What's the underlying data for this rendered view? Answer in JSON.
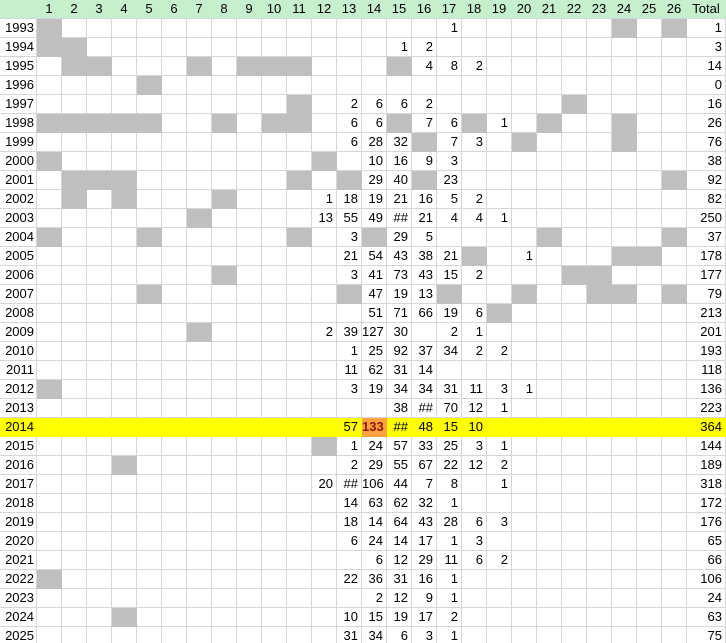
{
  "sheet_title": "Yearly counts by week/period spreadsheet",
  "colors": {
    "header_bg": "#C6EFCE",
    "grid_line": "#D6D6D6",
    "gray_fill": "#BFBFBF",
    "highlight_row": "#FFFF00",
    "accent_cell_bg": "#FFA33F",
    "accent_cell_text": "#8E1600",
    "text": "#000000"
  },
  "header": {
    "corner_label": "",
    "columns": [
      "1",
      "2",
      "3",
      "4",
      "5",
      "6",
      "7",
      "8",
      "9",
      "10",
      "11",
      "12",
      "13",
      "14",
      "15",
      "16",
      "17",
      "18",
      "19",
      "20",
      "21",
      "22",
      "23",
      "24",
      "25",
      "26"
    ],
    "total_label": "Total"
  },
  "rows": [
    {
      "year": "1993",
      "gray": [
        1,
        24,
        26
      ],
      "values": {
        "17": "1"
      },
      "total": "1",
      "highlight": false
    },
    {
      "year": "1994",
      "gray": [
        1,
        2
      ],
      "values": {
        "15": "1",
        "16": "2"
      },
      "total": "3",
      "highlight": false
    },
    {
      "year": "1995",
      "gray": [
        2,
        3,
        7,
        9,
        10,
        11,
        15
      ],
      "values": {
        "16": "4",
        "17": "8",
        "18": "2"
      },
      "total": "14",
      "highlight": false
    },
    {
      "year": "1996",
      "gray": [
        5
      ],
      "values": {},
      "total": "0",
      "highlight": false
    },
    {
      "year": "1997",
      "gray": [
        11,
        22
      ],
      "values": {
        "13": "2",
        "14": "6",
        "15": "6",
        "16": "2"
      },
      "total": "16",
      "highlight": false
    },
    {
      "year": "1998",
      "gray": [
        1,
        2,
        3,
        4,
        5,
        8,
        10,
        11,
        15,
        18,
        21,
        24
      ],
      "values": {
        "13": "6",
        "14": "6",
        "16": "7",
        "17": "6",
        "19": "1"
      },
      "total": "26",
      "highlight": false
    },
    {
      "year": "1999",
      "gray": [
        16,
        20,
        24
      ],
      "values": {
        "13": "6",
        "14": "28",
        "15": "32",
        "17": "7",
        "18": "3"
      },
      "total": "76",
      "highlight": false
    },
    {
      "year": "2000",
      "gray": [
        1,
        12
      ],
      "values": {
        "14": "10",
        "15": "16",
        "16": "9",
        "17": "3"
      },
      "total": "38",
      "highlight": false
    },
    {
      "year": "2001",
      "gray": [
        2,
        3,
        4,
        11,
        13,
        16,
        26
      ],
      "values": {
        "14": "29",
        "15": "40",
        "17": "23"
      },
      "total": "92",
      "highlight": false
    },
    {
      "year": "2002",
      "gray": [
        2,
        4,
        8
      ],
      "values": {
        "12": "1",
        "13": "18",
        "14": "19",
        "15": "21",
        "16": "16",
        "17": "5",
        "18": "2"
      },
      "total": "82",
      "highlight": false
    },
    {
      "year": "2003",
      "gray": [
        7
      ],
      "values": {
        "12": "13",
        "13": "55",
        "14": "49",
        "15": "##",
        "16": "21",
        "17": "4",
        "18": "4",
        "19": "1"
      },
      "total": "250",
      "highlight": false
    },
    {
      "year": "2004",
      "gray": [
        1,
        5,
        11,
        14,
        21,
        26
      ],
      "values": {
        "13": "3",
        "15": "29",
        "16": "5"
      },
      "total": "37",
      "highlight": false
    },
    {
      "year": "2005",
      "gray": [
        18,
        24,
        25
      ],
      "values": {
        "13": "21",
        "14": "54",
        "15": "43",
        "16": "38",
        "17": "21",
        "20": "1"
      },
      "total": "178",
      "highlight": false
    },
    {
      "year": "2006",
      "gray": [
        8,
        22,
        23
      ],
      "values": {
        "13": "3",
        "14": "41",
        "15": "73",
        "16": "43",
        "17": "15",
        "18": "2"
      },
      "total": "177",
      "highlight": false
    },
    {
      "year": "2007",
      "gray": [
        5,
        13,
        17,
        20,
        23,
        24,
        26
      ],
      "values": {
        "14": "47",
        "15": "19",
        "16": "13"
      },
      "total": "79",
      "highlight": false
    },
    {
      "year": "2008",
      "gray": [
        19
      ],
      "values": {
        "14": "51",
        "15": "71",
        "16": "66",
        "17": "19",
        "18": "6"
      },
      "total": "213",
      "highlight": false
    },
    {
      "year": "2009",
      "gray": [
        7
      ],
      "values": {
        "12": "2",
        "13": "39",
        "14": "127",
        "15": "30",
        "17": "2",
        "18": "1"
      },
      "total": "201",
      "highlight": false
    },
    {
      "year": "2010",
      "gray": [],
      "values": {
        "13": "1",
        "14": "25",
        "15": "92",
        "16": "37",
        "17": "34",
        "18": "2",
        "19": "2"
      },
      "total": "193",
      "highlight": false
    },
    {
      "year": "2011",
      "gray": [],
      "values": {
        "13": "11",
        "14": "62",
        "15": "31",
        "16": "14"
      },
      "total": "118",
      "highlight": false
    },
    {
      "year": "2012",
      "gray": [
        1
      ],
      "values": {
        "13": "3",
        "14": "19",
        "15": "34",
        "16": "34",
        "17": "31",
        "18": "11",
        "19": "3",
        "20": "1"
      },
      "total": "136",
      "highlight": false
    },
    {
      "year": "2013",
      "gray": [],
      "values": {
        "15": "38",
        "16": "##",
        "17": "70",
        "18": "12",
        "19": "1"
      },
      "total": "223",
      "highlight": false
    },
    {
      "year": "2014",
      "gray": [],
      "values": {
        "13": "57",
        "14": "133",
        "15": "##",
        "16": "48",
        "17": "15",
        "18": "10"
      },
      "total": "364",
      "highlight": true,
      "accent_col": 14
    },
    {
      "year": "2015",
      "gray": [
        12
      ],
      "values": {
        "13": "1",
        "14": "24",
        "15": "57",
        "16": "33",
        "17": "25",
        "18": "3",
        "19": "1"
      },
      "total": "144",
      "highlight": false
    },
    {
      "year": "2016",
      "gray": [
        4
      ],
      "values": {
        "13": "2",
        "14": "29",
        "15": "55",
        "16": "67",
        "17": "22",
        "18": "12",
        "19": "2"
      },
      "total": "189",
      "highlight": false
    },
    {
      "year": "2017",
      "gray": [],
      "values": {
        "12": "20",
        "13": "##",
        "14": "106",
        "15": "44",
        "16": "7",
        "17": "8",
        "19": "1"
      },
      "total": "318",
      "highlight": false
    },
    {
      "year": "2018",
      "gray": [],
      "values": {
        "13": "14",
        "14": "63",
        "15": "62",
        "16": "32",
        "17": "1"
      },
      "total": "172",
      "highlight": false
    },
    {
      "year": "2019",
      "gray": [],
      "values": {
        "13": "18",
        "14": "14",
        "15": "64",
        "16": "43",
        "17": "28",
        "18": "6",
        "19": "3"
      },
      "total": "176",
      "highlight": false
    },
    {
      "year": "2020",
      "gray": [],
      "values": {
        "13": "6",
        "14": "24",
        "15": "14",
        "16": "17",
        "17": "1",
        "18": "3"
      },
      "total": "65",
      "highlight": false
    },
    {
      "year": "2021",
      "gray": [],
      "values": {
        "14": "6",
        "15": "12",
        "16": "29",
        "17": "11",
        "18": "6",
        "19": "2"
      },
      "total": "66",
      "highlight": false
    },
    {
      "year": "2022",
      "gray": [
        1
      ],
      "values": {
        "13": "22",
        "14": "36",
        "15": "31",
        "16": "16",
        "17": "1"
      },
      "total": "106",
      "highlight": false
    },
    {
      "year": "2023",
      "gray": [],
      "values": {
        "14": "2",
        "15": "12",
        "16": "9",
        "17": "1"
      },
      "total": "24",
      "highlight": false
    },
    {
      "year": "2024",
      "gray": [
        4
      ],
      "values": {
        "13": "10",
        "14": "15",
        "15": "19",
        "16": "17",
        "17": "2"
      },
      "total": "63",
      "highlight": false
    },
    {
      "year": "2025",
      "gray": [],
      "values": {
        "13": "31",
        "14": "34",
        "15": "6",
        "16": "3",
        "17": "1"
      },
      "total": "75",
      "highlight": false
    }
  ]
}
